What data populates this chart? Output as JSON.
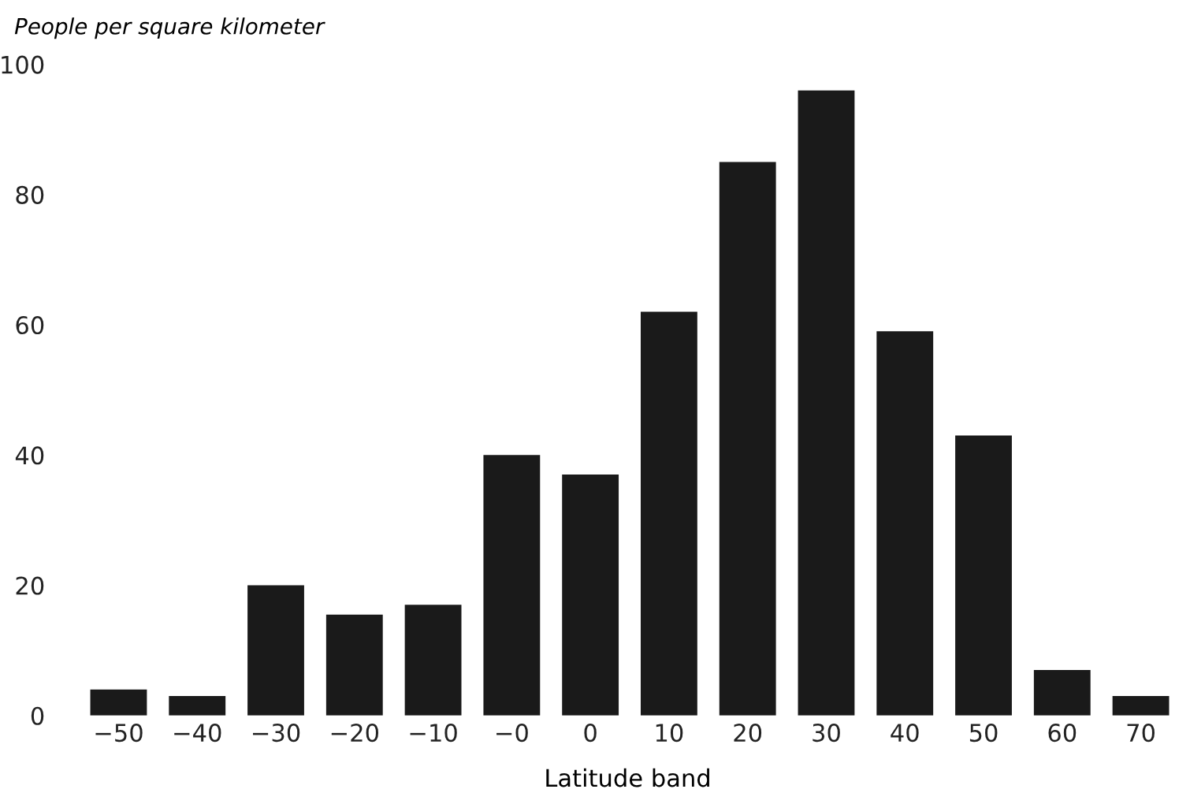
{
  "chart_data": {
    "type": "bar",
    "ylabel": "People per square kilometer",
    "xlabel": "Latitude band",
    "categories": [
      "−50",
      "−40",
      "−30",
      "−20",
      "−10",
      "−0",
      "0",
      "10",
      "20",
      "30",
      "40",
      "50",
      "60",
      "70"
    ],
    "values": [
      4,
      3,
      20,
      15.5,
      17,
      40,
      37,
      62,
      85,
      96,
      59,
      43,
      7,
      3
    ],
    "color": "#1a1a1a",
    "ylim": [
      0,
      100
    ],
    "yticks": [
      0,
      20,
      40,
      60,
      80,
      100
    ],
    "grid": false
  }
}
